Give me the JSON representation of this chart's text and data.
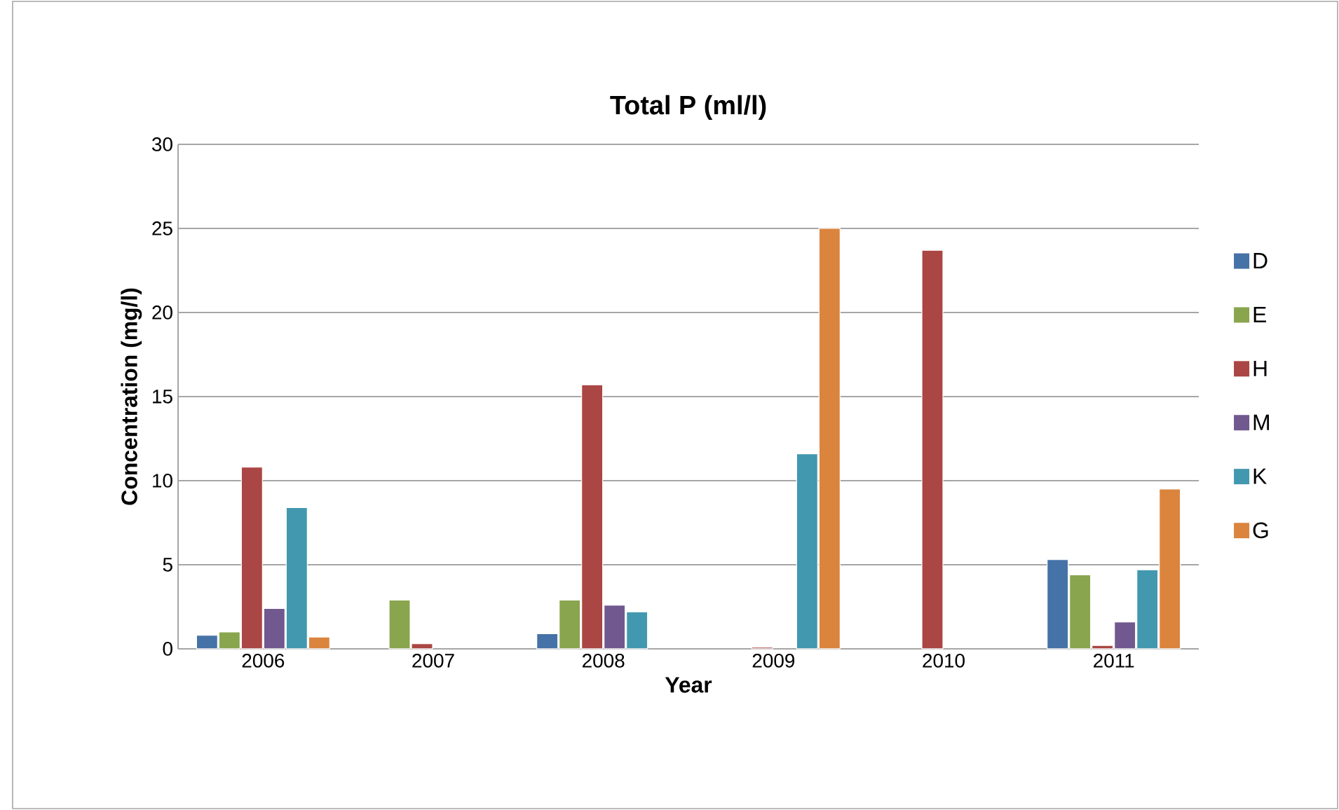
{
  "chart_data": {
    "type": "bar",
    "title": "Total P (ml/l)",
    "xlabel": "Year",
    "ylabel": "Concentration (mg/l)",
    "categories": [
      "2006",
      "2007",
      "2008",
      "2009",
      "2010",
      "2011"
    ],
    "series": [
      {
        "name": "D",
        "color": "#4572a7",
        "values": [
          0.8,
          null,
          0.9,
          null,
          null,
          5.3
        ]
      },
      {
        "name": "E",
        "color": "#89a54e",
        "values": [
          1.0,
          2.9,
          2.9,
          null,
          null,
          4.4
        ]
      },
      {
        "name": "H",
        "color": "#aa4643",
        "values": [
          10.8,
          0.3,
          15.7,
          0.1,
          23.7,
          0.2
        ]
      },
      {
        "name": "M",
        "color": "#71588f",
        "values": [
          2.4,
          null,
          2.6,
          null,
          null,
          1.6
        ]
      },
      {
        "name": "K",
        "color": "#4198af",
        "values": [
          8.4,
          null,
          2.2,
          11.6,
          null,
          4.7
        ]
      },
      {
        "name": "G",
        "color": "#db843d",
        "values": [
          0.7,
          null,
          null,
          25,
          null,
          9.5
        ]
      }
    ],
    "ylim": [
      0,
      30
    ],
    "yticks": [
      0,
      5,
      10,
      15,
      20,
      25,
      30
    ],
    "grid": "y",
    "legend": "right"
  }
}
